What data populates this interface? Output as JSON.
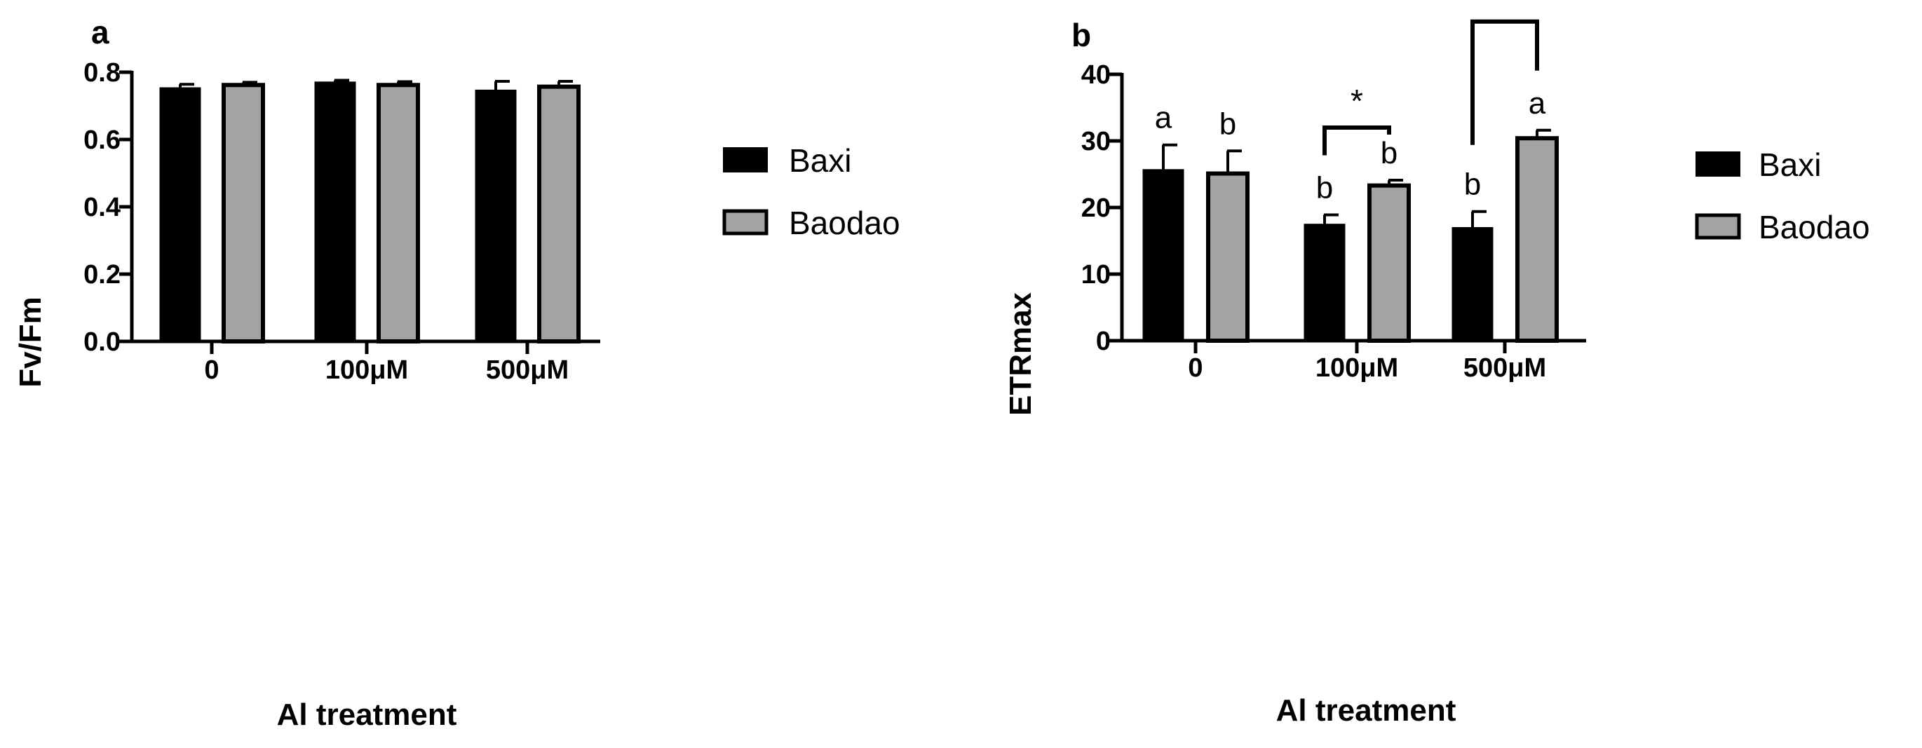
{
  "chart_data": [
    {
      "panel": "a",
      "type": "bar",
      "categories": [
        "0",
        "100μM",
        "500μM"
      ],
      "series": [
        {
          "name": "Baxi",
          "color": "#000000",
          "values": [
            0.752,
            0.769,
            0.745
          ],
          "errors": [
            0.012,
            0.007,
            0.028
          ]
        },
        {
          "name": "Baodao",
          "color": "#a3a3a3",
          "values": [
            0.762,
            0.762,
            0.757
          ],
          "errors": [
            0.008,
            0.01,
            0.016
          ]
        }
      ],
      "xlabel": "Al treatment",
      "ylabel": "Fv/Fm",
      "ylim": [
        0,
        0.8
      ],
      "yticks": [
        "0.0",
        "0.2",
        "0.4",
        "0.6",
        "0.8"
      ],
      "legend_position": "right",
      "grid": false
    },
    {
      "panel": "b",
      "type": "bar",
      "categories": [
        "0",
        "100μM",
        "500μM"
      ],
      "series": [
        {
          "name": "Baxi",
          "color": "#000000",
          "values": [
            25.6,
            17.4,
            16.9
          ],
          "errors": [
            3.8,
            1.5,
            2.5
          ],
          "letters": [
            "a",
            "b",
            "b"
          ]
        },
        {
          "name": "Baodao",
          "color": "#a3a3a3",
          "values": [
            25.1,
            23.3,
            30.4
          ],
          "errors": [
            3.4,
            0.8,
            1.2
          ],
          "letters": [
            "b",
            "b",
            "a"
          ]
        }
      ],
      "significance": [
        "",
        "*",
        "***"
      ],
      "xlabel": "Al treatment",
      "ylabel": "ETRmax",
      "ylim": [
        0,
        40
      ],
      "yticks": [
        "0",
        "10",
        "20",
        "30",
        "40"
      ],
      "legend_position": "right",
      "grid": false
    }
  ]
}
